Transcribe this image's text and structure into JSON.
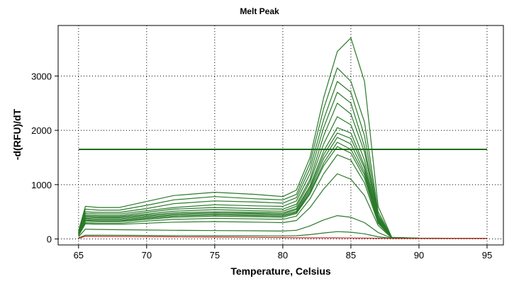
{
  "chart_data": {
    "type": "line",
    "title": "Melt Peak",
    "xlabel": "Temperature, Celsius",
    "ylabel": "-d(RFU)/dT",
    "xlim": [
      63.5,
      96.2
    ],
    "ylim": [
      -110,
      3930
    ],
    "x_ticks": [
      65,
      70,
      75,
      80,
      85,
      90,
      95
    ],
    "y_ticks": [
      0,
      1000,
      2000,
      3000
    ],
    "x_tick_labels": [
      "65",
      "70",
      "75",
      "80",
      "85",
      "90",
      "95"
    ],
    "y_tick_labels": [
      "0",
      "1000",
      "2000",
      "3000"
    ],
    "grid": true,
    "threshold": {
      "y": 1650,
      "x_range": [
        65,
        95
      ],
      "color": "#1e6b1e"
    },
    "series_color": "#2a7a2a",
    "negative_color": "#cc2222",
    "series": [
      {
        "x": [
          65,
          65.5,
          66.5,
          68,
          70,
          72,
          75,
          78,
          80,
          81,
          82,
          83,
          84,
          85,
          86,
          87,
          88,
          90,
          95
        ],
        "values": [
          150,
          600,
          580,
          580,
          690,
          800,
          860,
          820,
          780,
          900,
          1500,
          2600,
          3450,
          3700,
          2900,
          600,
          30,
          15,
          10
        ]
      },
      {
        "x": [
          65,
          65.5,
          66.5,
          68,
          70,
          72,
          75,
          78,
          80,
          81,
          82,
          83,
          84,
          85,
          86,
          87,
          88,
          90,
          95
        ],
        "values": [
          130,
          550,
          530,
          530,
          620,
          720,
          780,
          740,
          720,
          820,
          1400,
          2400,
          3150,
          2900,
          2150,
          500,
          28,
          14,
          10
        ]
      },
      {
        "x": [
          65,
          65.5,
          66.5,
          68,
          70,
          72,
          75,
          78,
          80,
          81,
          82,
          83,
          84,
          85,
          86,
          87,
          88,
          90,
          95
        ],
        "values": [
          120,
          500,
          490,
          490,
          560,
          650,
          700,
          680,
          660,
          760,
          1300,
          2200,
          2900,
          2700,
          1900,
          450,
          26,
          13,
          10
        ]
      },
      {
        "x": [
          65,
          65.5,
          66.5,
          68,
          70,
          72,
          75,
          78,
          80,
          81,
          82,
          83,
          84,
          85,
          86,
          87,
          88,
          90,
          95
        ],
        "values": [
          110,
          470,
          460,
          460,
          520,
          580,
          630,
          610,
          600,
          700,
          1200,
          2050,
          2700,
          2500,
          1700,
          420,
          25,
          12,
          10
        ]
      },
      {
        "x": [
          65,
          65.5,
          66.5,
          68,
          70,
          72,
          75,
          78,
          80,
          81,
          82,
          83,
          84,
          85,
          86,
          87,
          88,
          90,
          95
        ],
        "values": [
          100,
          440,
          430,
          430,
          490,
          550,
          580,
          560,
          550,
          640,
          1100,
          1900,
          2500,
          2300,
          1600,
          390,
          24,
          12,
          10
        ]
      },
      {
        "x": [
          65,
          65.5,
          66.5,
          68,
          70,
          72,
          75,
          78,
          80,
          81,
          82,
          83,
          84,
          85,
          86,
          87,
          88,
          90,
          95
        ],
        "values": [
          95,
          420,
          410,
          410,
          460,
          510,
          540,
          520,
          510,
          600,
          1050,
          1750,
          2250,
          2100,
          1450,
          370,
          23,
          12,
          10
        ]
      },
      {
        "x": [
          65,
          65.5,
          66.5,
          68,
          70,
          72,
          75,
          78,
          80,
          81,
          82,
          83,
          84,
          85,
          86,
          87,
          88,
          90,
          95
        ],
        "values": [
          90,
          400,
          390,
          390,
          440,
          480,
          500,
          490,
          480,
          560,
          980,
          1620,
          2050,
          1950,
          1350,
          350,
          22,
          11,
          10
        ]
      },
      {
        "x": [
          65,
          65.5,
          66.5,
          68,
          70,
          72,
          75,
          78,
          80,
          81,
          82,
          83,
          84,
          85,
          86,
          87,
          88,
          90,
          95
        ],
        "values": [
          85,
          380,
          370,
          370,
          420,
          460,
          480,
          470,
          460,
          540,
          940,
          1550,
          1950,
          1850,
          1300,
          340,
          22,
          11,
          10
        ]
      },
      {
        "x": [
          65,
          65.5,
          66.5,
          68,
          70,
          72,
          75,
          78,
          80,
          81,
          82,
          83,
          84,
          85,
          86,
          87,
          88,
          90,
          95
        ],
        "values": [
          80,
          360,
          350,
          350,
          400,
          440,
          460,
          450,
          440,
          510,
          900,
          1480,
          1870,
          1750,
          1230,
          330,
          21,
          11,
          10
        ]
      },
      {
        "x": [
          65,
          65.5,
          66.5,
          68,
          70,
          72,
          75,
          78,
          80,
          81,
          82,
          83,
          84,
          85,
          86,
          87,
          88,
          90,
          95
        ],
        "values": [
          75,
          340,
          330,
          330,
          380,
          420,
          440,
          430,
          420,
          490,
          860,
          1400,
          1780,
          1650,
          1180,
          320,
          21,
          11,
          10
        ]
      },
      {
        "x": [
          65,
          65.5,
          66.5,
          68,
          70,
          72,
          75,
          78,
          80,
          81,
          82,
          83,
          84,
          85,
          86,
          87,
          88,
          90,
          95
        ],
        "values": [
          70,
          330,
          320,
          320,
          360,
          400,
          420,
          410,
          400,
          470,
          830,
          1350,
          1700,
          1580,
          1120,
          310,
          20,
          10,
          10
        ]
      },
      {
        "x": [
          65,
          65.5,
          66.5,
          68,
          70,
          72,
          75,
          78,
          80,
          81,
          82,
          83,
          84,
          85,
          86,
          87,
          88,
          90,
          95
        ],
        "values": [
          65,
          300,
          290,
          290,
          330,
          360,
          380,
          370,
          360,
          420,
          740,
          1200,
          1550,
          1450,
          1030,
          290,
          20,
          10,
          10
        ]
      },
      {
        "x": [
          65,
          65.5,
          66.5,
          68,
          70,
          72,
          75,
          78,
          80,
          81,
          82,
          83,
          84,
          85,
          86,
          87,
          88,
          90,
          95
        ],
        "values": [
          60,
          280,
          270,
          270,
          290,
          310,
          320,
          310,
          300,
          340,
          580,
          920,
          1200,
          1100,
          800,
          250,
          18,
          10,
          10
        ]
      },
      {
        "x": [
          65,
          65.5,
          66.5,
          68,
          70,
          72,
          75,
          78,
          80,
          81,
          82,
          83,
          84,
          85,
          86,
          87,
          88,
          90,
          95
        ],
        "values": [
          40,
          180,
          175,
          170,
          165,
          160,
          155,
          150,
          145,
          160,
          240,
          350,
          430,
          400,
          300,
          120,
          14,
          10,
          10
        ]
      },
      {
        "x": [
          65,
          65.5,
          66.5,
          68,
          70,
          72,
          75,
          78,
          80,
          81,
          82,
          83,
          84,
          85,
          86,
          87,
          88,
          90,
          95
        ],
        "values": [
          20,
          70,
          70,
          68,
          65,
          62,
          60,
          58,
          56,
          60,
          80,
          110,
          135,
          125,
          95,
          40,
          12,
          10,
          10
        ]
      },
      {
        "x": [
          65,
          65.5,
          66.5,
          68,
          70,
          72,
          75,
          78,
          80,
          81,
          82,
          83,
          84,
          85,
          86,
          87,
          88,
          90,
          95
        ],
        "values": [
          10,
          50,
          48,
          46,
          43,
          40,
          35,
          30,
          25,
          22,
          20,
          20,
          20,
          18,
          15,
          12,
          10,
          10,
          10
        ],
        "negative": true
      }
    ]
  }
}
